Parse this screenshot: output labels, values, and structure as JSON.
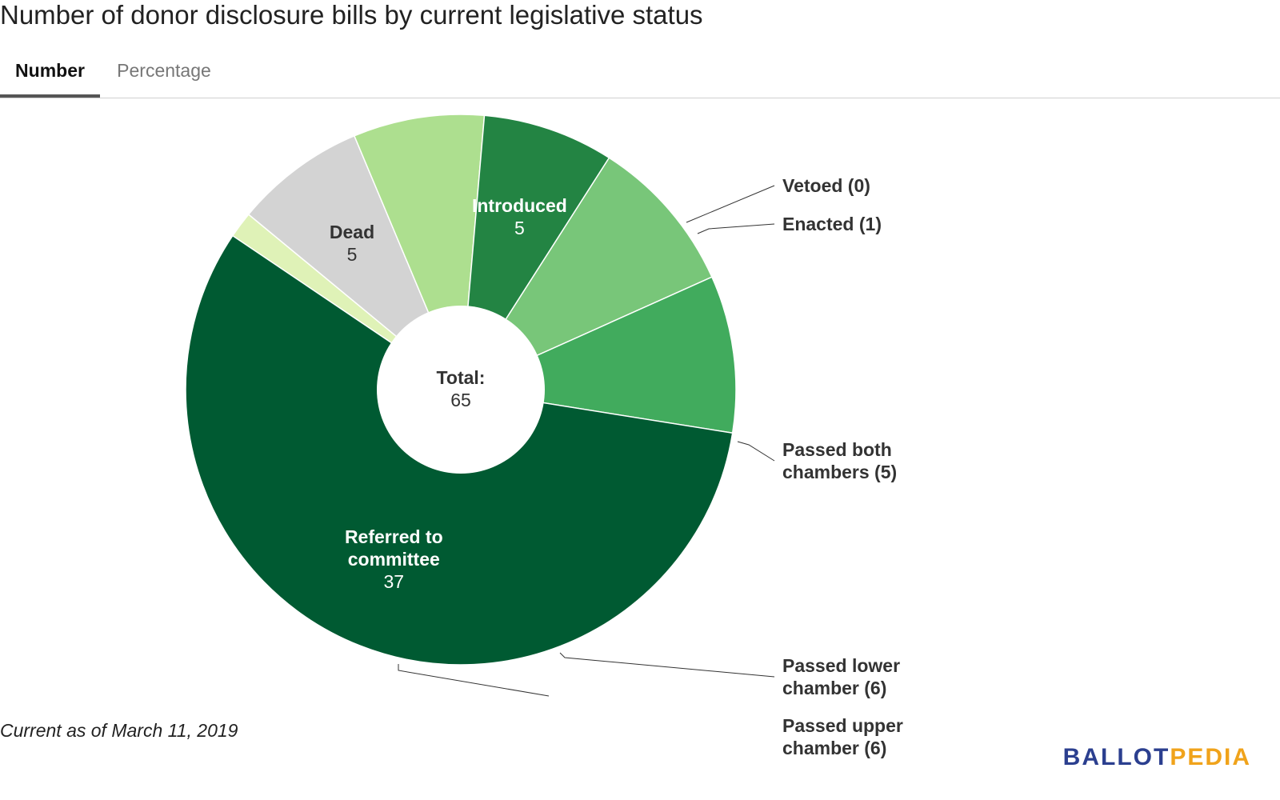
{
  "title": "Number of donor disclosure bills by current legislative status",
  "tabs": [
    {
      "label": "Number",
      "active": true
    },
    {
      "label": "Percentage",
      "active": false
    }
  ],
  "chart_data": {
    "type": "pie",
    "donut": true,
    "center_label": {
      "line1": "Total:",
      "line2": "65"
    },
    "slices": [
      {
        "label": "Vetoed",
        "value": 0,
        "color": "#dff2b7",
        "display": "outside",
        "outside_lines": [
          "Vetoed (0)"
        ]
      },
      {
        "label": "Enacted",
        "value": 1,
        "color": "#dff2b7",
        "display": "outside",
        "outside_lines": [
          "Enacted (1)"
        ]
      },
      {
        "label": "Dead",
        "value": 5,
        "color": "#d3d3d3",
        "display": "inside",
        "inside_lines": [
          "Dead"
        ],
        "value_text": "5",
        "text_color": "#333333"
      },
      {
        "label": "Passed both chambers",
        "value": 5,
        "color": "#addf8f",
        "display": "outside",
        "outside_lines": [
          "Passed both",
          "chambers (5)"
        ]
      },
      {
        "label": "Introduced",
        "value": 5,
        "color": "#238443",
        "display": "inside",
        "inside_lines": [
          "Introduced"
        ],
        "value_text": "5",
        "text_color": "#ffffff"
      },
      {
        "label": "Passed lower chamber",
        "value": 6,
        "color": "#78c679",
        "display": "outside",
        "outside_lines": [
          "Passed lower",
          "chamber (6)"
        ]
      },
      {
        "label": "Passed upper chamber",
        "value": 6,
        "color": "#41ab5d",
        "display": "outside",
        "outside_lines": [
          "Passed upper",
          "chamber (6)"
        ]
      },
      {
        "label": "Referred to committee",
        "value": 37,
        "color": "#005a32",
        "display": "inside",
        "inside_lines": [
          "Referred to",
          "committee"
        ],
        "value_text": "37",
        "text_color": "#ffffff"
      }
    ]
  },
  "caption": "Current as of March 11, 2019",
  "logo": {
    "part1": "BALLOT",
    "part2": "PEDIA"
  }
}
